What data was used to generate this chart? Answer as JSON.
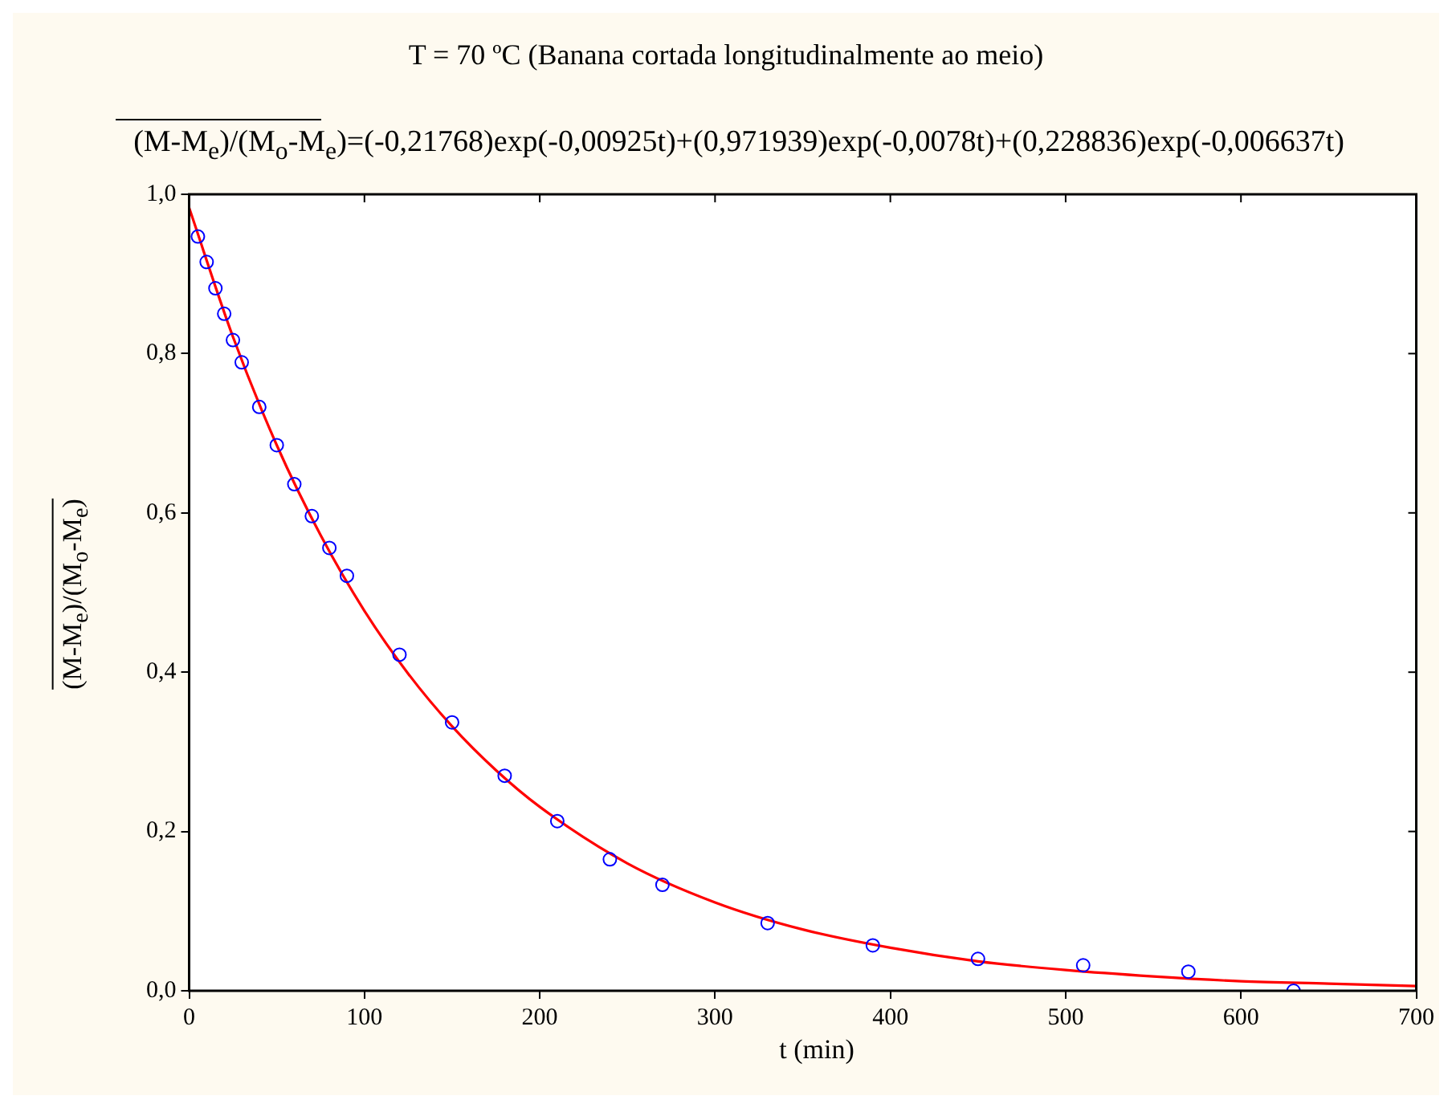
{
  "chart_data": {
    "type": "scatter",
    "title": "T = 70 ºC (Banana cortada longitudinalmente ao meio)",
    "subtitle": "(M-M$_{e}$)/(M$_{o}$-M$_{e}$)=(-0,21768)exp(-0,00925t)+(0,971939)exp(-0,0078t)+(0,228836)exp(-0,006637t)",
    "xlabel": "t (min)",
    "ylabel": "(M-M$_{e}$)/(M$_{o}$-M$_{e}$)",
    "series": [
      {
        "type": "scatter",
        "color": "#0000ff",
        "marker": "circle",
        "x": [
          5,
          10,
          15,
          20,
          25,
          30,
          40,
          50,
          60,
          70,
          80,
          90,
          120,
          150,
          180,
          210,
          240,
          270,
          330,
          390,
          450,
          510,
          570,
          630
        ],
        "values": [
          0.947,
          0.915,
          0.882,
          0.85,
          0.817,
          0.789,
          0.733,
          0.685,
          0.636,
          0.596,
          0.556,
          0.521,
          0.422,
          0.337,
          0.27,
          0.213,
          0.165,
          0.133,
          0.085,
          0.057,
          0.04,
          0.032,
          0.024,
          0.0
        ]
      },
      {
        "type": "line",
        "color": "#ff0000",
        "marker": "none",
        "line_style": "solid",
        "x": [
          0,
          25,
          50,
          75,
          100,
          125,
          150,
          175,
          200,
          250,
          300,
          350,
          400,
          450,
          500,
          550,
          600,
          650,
          700
        ],
        "values": [
          0.983,
          0.821,
          0.685,
          0.572,
          0.477,
          0.398,
          0.332,
          0.277,
          0.231,
          0.16,
          0.111,
          0.077,
          0.054,
          0.037,
          0.026,
          0.018,
          0.012,
          0.009,
          0.006
        ]
      }
    ],
    "xlim": [
      0,
      700
    ],
    "xticks": [
      0,
      100,
      200,
      300,
      400,
      500,
      600,
      700
    ],
    "ylim": [
      0,
      1
    ],
    "yticks": [
      {
        "value": 0,
        "label": "0,0"
      },
      {
        "value": 0.2,
        "label": "0,2"
      },
      {
        "value": 0.4,
        "label": "0,4"
      },
      {
        "value": 0.6,
        "label": "0,6"
      },
      {
        "value": 0.8,
        "label": "0,8"
      },
      {
        "value": 1,
        "label": "1,0"
      }
    ],
    "grid": false,
    "legend": false
  }
}
